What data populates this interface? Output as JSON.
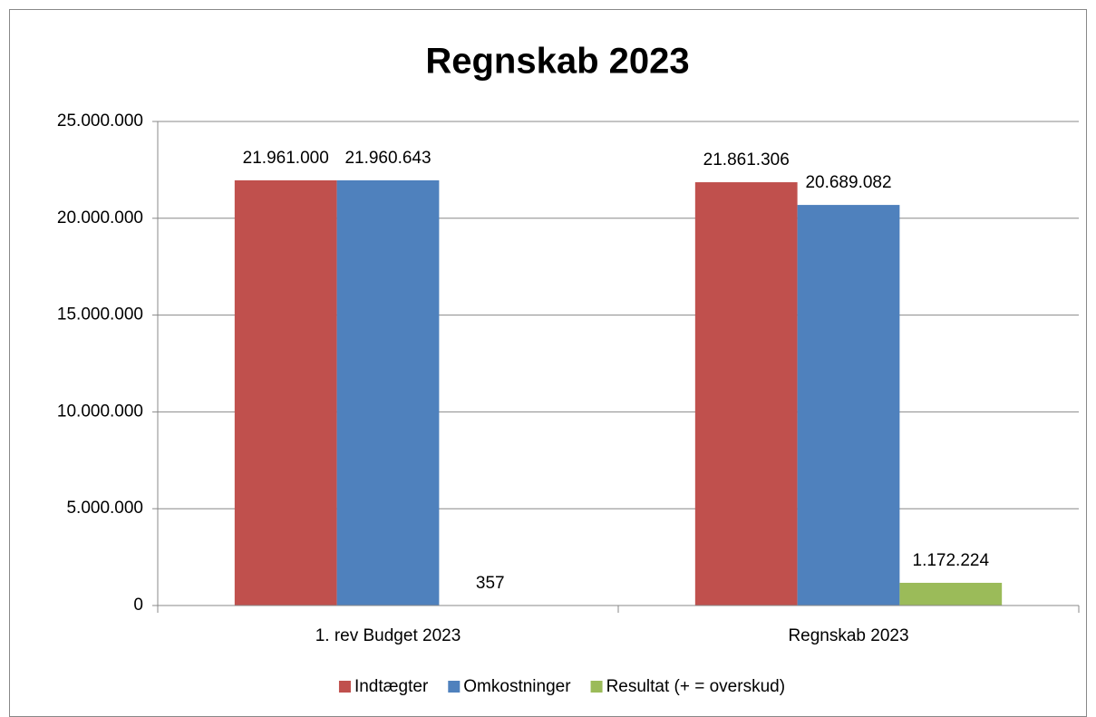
{
  "chart_data": {
    "type": "bar",
    "title": "Regnskab 2023",
    "categories": [
      "1. rev Budget 2023",
      "Regnskab 2023"
    ],
    "series": [
      {
        "name": "Indtægter",
        "color": "#c0504d",
        "values": [
          21961000,
          21861306
        ],
        "value_labels": [
          "21.961.000",
          "21.861.306"
        ]
      },
      {
        "name": "Omkostninger",
        "color": "#4f81bd",
        "values": [
          21960643,
          20689082
        ],
        "value_labels": [
          "21.960.643",
          "20.689.082"
        ]
      },
      {
        "name": "Resultat (+ = overskud)",
        "color": "#9bbb59",
        "values": [
          357,
          1172224
        ],
        "value_labels": [
          "357",
          "1.172.224"
        ]
      }
    ],
    "ylim": [
      0,
      25000000
    ],
    "yticks": [
      0,
      {
        "value": 5000000,
        "label": "5.000.000"
      },
      {
        "value": 10000000,
        "label": "10.000.000"
      },
      {
        "value": 15000000,
        "label": "15.000.000"
      },
      {
        "value": 20000000,
        "label": "20.000.000"
      },
      {
        "value": 25000000,
        "label": "25.000.000"
      }
    ],
    "grid": true,
    "legend": "bottom"
  }
}
